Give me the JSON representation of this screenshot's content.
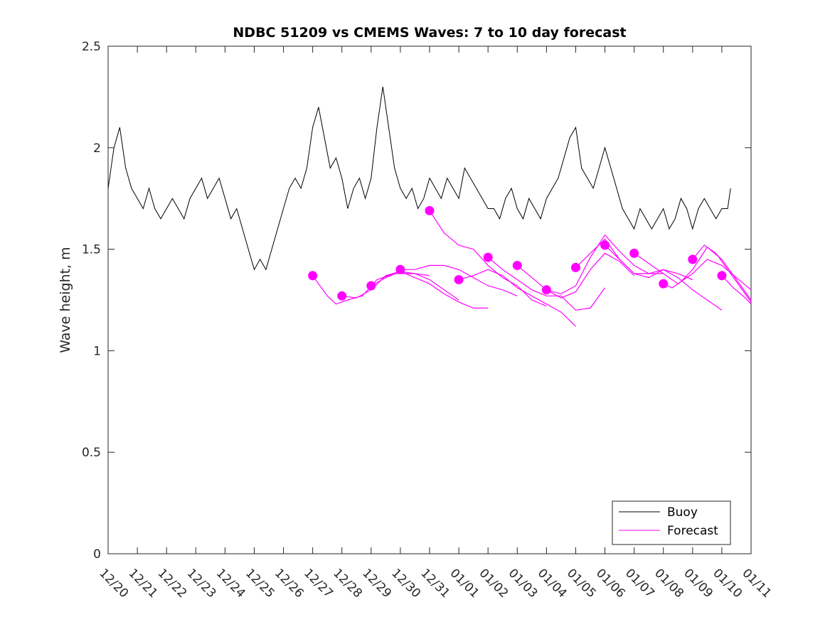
{
  "chart_data": {
    "type": "line",
    "title": "NDBC 51209 vs CMEMS Waves: 7 to 10 day forecast",
    "xlabel": "",
    "ylabel": "Wave height, m",
    "xlim": [
      0,
      22
    ],
    "ylim": [
      0,
      2.5
    ],
    "x_tick_labels": [
      "12/20",
      "12/21",
      "12/22",
      "12/23",
      "12/24",
      "12/25",
      "12/26",
      "12/27",
      "12/28",
      "12/29",
      "12/30",
      "12/31",
      "01/01",
      "01/02",
      "01/03",
      "01/04",
      "01/05",
      "01/06",
      "01/07",
      "01/08",
      "01/09",
      "01/10",
      "01/11"
    ],
    "y_ticks": [
      0,
      0.5,
      1,
      1.5,
      2,
      2.5
    ],
    "y_tick_labels": [
      "0",
      "0.5",
      "1",
      "1.5",
      "2",
      "2.5"
    ],
    "legend_position": "bottom-right",
    "colors": {
      "buoy": "#000000",
      "forecast": "#ff00ff"
    },
    "series": [
      {
        "name": "Buoy",
        "style": "line",
        "x": [
          0.0,
          0.2,
          0.4,
          0.6,
          0.8,
          1.0,
          1.2,
          1.4,
          1.6,
          1.8,
          2.0,
          2.2,
          2.4,
          2.6,
          2.8,
          3.0,
          3.2,
          3.4,
          3.6,
          3.8,
          4.0,
          4.2,
          4.4,
          4.6,
          4.8,
          5.0,
          5.2,
          5.4,
          5.6,
          5.8,
          6.0,
          6.2,
          6.4,
          6.6,
          6.8,
          7.0,
          7.2,
          7.4,
          7.6,
          7.8,
          8.0,
          8.2,
          8.4,
          8.6,
          8.8,
          9.0,
          9.2,
          9.4,
          9.6,
          9.8,
          10.0,
          10.2,
          10.4,
          10.6,
          10.8,
          11.0,
          11.2,
          11.4,
          11.6,
          11.8,
          12.0,
          12.2,
          12.4,
          12.6,
          12.8,
          13.0,
          13.2,
          13.4,
          13.6,
          13.8,
          14.0,
          14.2,
          14.4,
          14.6,
          14.8,
          15.0,
          15.2,
          15.4,
          15.6,
          15.8,
          16.0,
          16.2,
          16.4,
          16.6,
          16.8,
          17.0,
          17.2,
          17.4,
          17.6,
          17.8,
          18.0,
          18.2,
          18.4,
          18.6,
          18.8,
          19.0,
          19.2,
          19.4,
          19.6,
          19.8,
          20.0,
          20.2,
          20.4,
          20.6,
          20.8,
          21.0,
          21.2,
          21.3
        ],
        "y": [
          1.8,
          2.0,
          2.1,
          1.9,
          1.8,
          1.75,
          1.7,
          1.8,
          1.7,
          1.65,
          1.7,
          1.75,
          1.7,
          1.65,
          1.75,
          1.8,
          1.85,
          1.75,
          1.8,
          1.85,
          1.75,
          1.65,
          1.7,
          1.6,
          1.5,
          1.4,
          1.45,
          1.4,
          1.5,
          1.6,
          1.7,
          1.8,
          1.85,
          1.8,
          1.9,
          2.1,
          2.2,
          2.05,
          1.9,
          1.95,
          1.85,
          1.7,
          1.8,
          1.85,
          1.75,
          1.85,
          2.1,
          2.3,
          2.1,
          1.9,
          1.8,
          1.75,
          1.8,
          1.7,
          1.75,
          1.85,
          1.8,
          1.75,
          1.85,
          1.8,
          1.75,
          1.9,
          1.85,
          1.8,
          1.75,
          1.7,
          1.7,
          1.65,
          1.75,
          1.8,
          1.7,
          1.65,
          1.75,
          1.7,
          1.65,
          1.75,
          1.8,
          1.85,
          1.95,
          2.05,
          2.1,
          1.9,
          1.85,
          1.8,
          1.9,
          2.0,
          1.9,
          1.8,
          1.7,
          1.65,
          1.6,
          1.7,
          1.65,
          1.6,
          1.65,
          1.7,
          1.6,
          1.65,
          1.75,
          1.7,
          1.6,
          1.7,
          1.75,
          1.7,
          1.65,
          1.7,
          1.7,
          1.8
        ]
      },
      {
        "name": "Forecast",
        "style": "line",
        "runs": [
          {
            "x": [
              7.0,
              7.5,
              7.8,
              8.2,
              8.7,
              9.2,
              9.8,
              10.5,
              11.0
            ],
            "y": [
              1.37,
              1.27,
              1.23,
              1.25,
              1.27,
              1.35,
              1.38,
              1.38,
              1.37
            ]
          },
          {
            "x": [
              8.0,
              8.5,
              9.0,
              9.5,
              10.0,
              10.5,
              11.0,
              11.5,
              12.0
            ],
            "y": [
              1.27,
              1.26,
              1.3,
              1.37,
              1.39,
              1.38,
              1.35,
              1.3,
              1.25
            ]
          },
          {
            "x": [
              9.0,
              9.5,
              10.0,
              10.5,
              11.0,
              11.5,
              12.0,
              12.5,
              13.0
            ],
            "y": [
              1.32,
              1.36,
              1.39,
              1.36,
              1.33,
              1.28,
              1.24,
              1.21,
              1.21
            ]
          },
          {
            "x": [
              10.0,
              10.5,
              11.0,
              11.5,
              12.0,
              12.5,
              13.0,
              13.5,
              14.0
            ],
            "y": [
              1.4,
              1.4,
              1.42,
              1.42,
              1.4,
              1.36,
              1.32,
              1.3,
              1.27
            ]
          },
          {
            "x": [
              11.0,
              11.5,
              12.0,
              12.5,
              13.0,
              13.5,
              14.0,
              14.5,
              15.0
            ],
            "y": [
              1.69,
              1.58,
              1.52,
              1.5,
              1.42,
              1.36,
              1.32,
              1.25,
              1.22
            ]
          },
          {
            "x": [
              12.0,
              12.5,
              13.0,
              13.5,
              14.0,
              14.5,
              15.0,
              15.5,
              16.0
            ],
            "y": [
              1.35,
              1.37,
              1.4,
              1.37,
              1.31,
              1.27,
              1.23,
              1.19,
              1.12
            ]
          },
          {
            "x": [
              13.0,
              13.5,
              14.0,
              14.5,
              15.0,
              15.5,
              16.0,
              16.5,
              17.0
            ],
            "y": [
              1.46,
              1.4,
              1.35,
              1.3,
              1.27,
              1.27,
              1.2,
              1.21,
              1.31
            ]
          },
          {
            "x": [
              14.0,
              14.5,
              15.0,
              15.5,
              16.0,
              16.5,
              17.0,
              17.5,
              18.0
            ],
            "y": [
              1.42,
              1.36,
              1.3,
              1.26,
              1.29,
              1.4,
              1.48,
              1.44,
              1.37
            ]
          },
          {
            "x": [
              15.0,
              15.5,
              16.0,
              16.5,
              17.0,
              17.5,
              18.0,
              18.5,
              19.0
            ],
            "y": [
              1.3,
              1.28,
              1.32,
              1.46,
              1.57,
              1.49,
              1.42,
              1.38,
              1.38
            ]
          },
          {
            "x": [
              16.0,
              16.5,
              17.0,
              17.5,
              18.0,
              18.5,
              19.0,
              19.5,
              20.0
            ],
            "y": [
              1.41,
              1.48,
              1.55,
              1.45,
              1.38,
              1.38,
              1.4,
              1.38,
              1.35
            ]
          },
          {
            "x": [
              17.0,
              17.5,
              18.0,
              18.5,
              19.0,
              19.5,
              20.0,
              20.5,
              21.0
            ],
            "y": [
              1.52,
              1.45,
              1.38,
              1.36,
              1.4,
              1.36,
              1.3,
              1.25,
              1.2
            ]
          },
          {
            "x": [
              18.0,
              18.5,
              19.0,
              19.5,
              20.0,
              20.5,
              21.0,
              21.5,
              22.0
            ],
            "y": [
              1.48,
              1.43,
              1.38,
              1.33,
              1.38,
              1.45,
              1.42,
              1.36,
              1.3
            ]
          },
          {
            "x": [
              19.0,
              19.3,
              19.6,
              20.0,
              20.5,
              21.0,
              21.5,
              22.0
            ],
            "y": [
              1.33,
              1.31,
              1.34,
              1.4,
              1.51,
              1.45,
              1.35,
              1.25
            ]
          },
          {
            "x": [
              20.0,
              20.4,
              20.8,
              21.2,
              21.6,
              22.0
            ],
            "y": [
              1.45,
              1.52,
              1.48,
              1.4,
              1.32,
              1.24
            ]
          },
          {
            "x": [
              21.0,
              21.4,
              21.8,
              22.0
            ],
            "y": [
              1.37,
              1.31,
              1.26,
              1.23
            ]
          }
        ],
        "markers": {
          "x": [
            7.0,
            8.0,
            9.0,
            10.0,
            11.0,
            12.0,
            13.0,
            14.0,
            15.0,
            16.0,
            17.0,
            18.0,
            19.0,
            20.0,
            21.0
          ],
          "y": [
            1.37,
            1.27,
            1.32,
            1.4,
            1.69,
            1.35,
            1.46,
            1.42,
            1.3,
            1.41,
            1.52,
            1.48,
            1.33,
            1.45,
            1.37
          ]
        }
      }
    ],
    "legend": [
      "Buoy",
      "Forecast"
    ]
  }
}
